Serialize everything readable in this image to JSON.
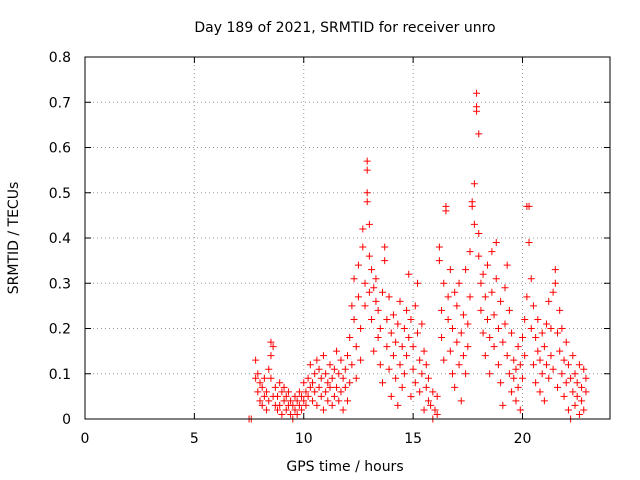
{
  "chart_data": {
    "type": "scatter",
    "title": "Day 189 of 2021, SRMTID for receiver unro",
    "xlabel": "GPS time / hours",
    "ylabel": "SRMTID / TECUs",
    "xlim": [
      0,
      24
    ],
    "ylim": [
      0,
      0.8
    ],
    "xticks": [
      0,
      5,
      10,
      15,
      20
    ],
    "yticks": [
      0,
      0.1,
      0.2,
      0.3,
      0.4,
      0.5,
      0.6,
      0.7,
      0.8
    ],
    "xtick_labels": [
      "0",
      "5",
      "10",
      "15",
      "20"
    ],
    "ytick_labels": [
      "0",
      "0.1",
      "0.2",
      "0.3",
      "0.4",
      "0.5",
      "0.6",
      "0.7",
      "0.8"
    ],
    "grid": true,
    "marker": "plus",
    "color": "#ff0000",
    "series": [
      {
        "name": "SRMTID",
        "points": [
          [
            7.5,
            0
          ],
          [
            7.6,
            0
          ],
          [
            7.8,
            0.13
          ],
          [
            7.8,
            0.09
          ],
          [
            7.9,
            0.06
          ],
          [
            7.9,
            0.1
          ],
          [
            8.0,
            0.04
          ],
          [
            8.0,
            0.08
          ],
          [
            8.1,
            0.07
          ],
          [
            8.1,
            0.03
          ],
          [
            8.2,
            0.05
          ],
          [
            8.2,
            0.09
          ],
          [
            8.3,
            0.02
          ],
          [
            8.3,
            0.06
          ],
          [
            8.4,
            0.11
          ],
          [
            8.4,
            0.04
          ],
          [
            8.5,
            0.17
          ],
          [
            8.5,
            0.14
          ],
          [
            8.5,
            0.09
          ],
          [
            8.6,
            0.16
          ],
          [
            8.6,
            0.05
          ],
          [
            8.7,
            0.03
          ],
          [
            8.7,
            0.07
          ],
          [
            8.8,
            0.02
          ],
          [
            8.8,
            0.05
          ],
          [
            8.9,
            0.08
          ],
          [
            8.9,
            0.03
          ],
          [
            9.0,
            0.06
          ],
          [
            9.0,
            0.01
          ],
          [
            9.1,
            0.04
          ],
          [
            9.1,
            0.07
          ],
          [
            9.2,
            0.02
          ],
          [
            9.2,
            0.05
          ],
          [
            9.3,
            0.03
          ],
          [
            9.3,
            0.06
          ],
          [
            9.4,
            0.01
          ],
          [
            9.4,
            0.04
          ],
          [
            9.5,
            0.03
          ],
          [
            9.5,
            0
          ],
          [
            9.6,
            0.05
          ],
          [
            9.6,
            0.02
          ],
          [
            9.7,
            0.04
          ],
          [
            9.7,
            0.01
          ],
          [
            9.8,
            0.03
          ],
          [
            9.8,
            0.06
          ],
          [
            9.9,
            0.02
          ],
          [
            9.9,
            0.05
          ],
          [
            10.0,
            0.04
          ],
          [
            10.0,
            0.08
          ],
          [
            10.1,
            0.03
          ],
          [
            10.1,
            0.06
          ],
          [
            10.2,
            0.09
          ],
          [
            10.2,
            0.05
          ],
          [
            10.3,
            0.07
          ],
          [
            10.3,
            0.12
          ],
          [
            10.4,
            0.04
          ],
          [
            10.4,
            0.08
          ],
          [
            10.5,
            0.1
          ],
          [
            10.5,
            0.06
          ],
          [
            10.6,
            0.13
          ],
          [
            10.6,
            0.03
          ],
          [
            10.7,
            0.07
          ],
          [
            10.7,
            0.11
          ],
          [
            10.8,
            0.05
          ],
          [
            10.8,
            0.09
          ],
          [
            10.9,
            0.14
          ],
          [
            10.9,
            0.02
          ],
          [
            11.0,
            0.06
          ],
          [
            11.0,
            0.1
          ],
          [
            11.1,
            0.08
          ],
          [
            11.1,
            0.04
          ],
          [
            11.2,
            0.12
          ],
          [
            11.2,
            0.07
          ],
          [
            11.3,
            0.03
          ],
          [
            11.3,
            0.09
          ],
          [
            11.4,
            0.05
          ],
          [
            11.4,
            0.11
          ],
          [
            11.5,
            0.15
          ],
          [
            11.5,
            0.07
          ],
          [
            11.6,
            0.04
          ],
          [
            11.6,
            0.1
          ],
          [
            11.7,
            0.06
          ],
          [
            11.7,
            0.13
          ],
          [
            11.8,
            0.09
          ],
          [
            11.8,
            0.02
          ],
          [
            11.9,
            0.11
          ],
          [
            11.9,
            0.07
          ],
          [
            12.0,
            0.14
          ],
          [
            12.0,
            0.04
          ],
          [
            12.1,
            0.08
          ],
          [
            12.1,
            0.18
          ],
          [
            12.2,
            0.12
          ],
          [
            12.2,
            0.25
          ],
          [
            12.3,
            0.22
          ],
          [
            12.3,
            0.31
          ],
          [
            12.4,
            0.16
          ],
          [
            12.4,
            0.09
          ],
          [
            12.5,
            0.27
          ],
          [
            12.5,
            0.34
          ],
          [
            12.6,
            0.2
          ],
          [
            12.6,
            0.13
          ],
          [
            12.7,
            0.38
          ],
          [
            12.7,
            0.42
          ],
          [
            12.8,
            0.25
          ],
          [
            12.8,
            0.3
          ],
          [
            12.9,
            0.57
          ],
          [
            12.9,
            0.55
          ],
          [
            12.9,
            0.5
          ],
          [
            12.9,
            0.48
          ],
          [
            13.0,
            0.43
          ],
          [
            13.0,
            0.36
          ],
          [
            13.0,
            0.28
          ],
          [
            13.1,
            0.33
          ],
          [
            13.1,
            0.22
          ],
          [
            13.2,
            0.29
          ],
          [
            13.2,
            0.15
          ],
          [
            13.3,
            0.26
          ],
          [
            13.3,
            0.31
          ],
          [
            13.4,
            0.18
          ],
          [
            13.4,
            0.24
          ],
          [
            13.5,
            0.12
          ],
          [
            13.5,
            0.2
          ],
          [
            13.6,
            0.28
          ],
          [
            13.6,
            0.08
          ],
          [
            13.7,
            0.38
          ],
          [
            13.7,
            0.35
          ],
          [
            13.8,
            0.16
          ],
          [
            13.8,
            0.22
          ],
          [
            13.9,
            0.11
          ],
          [
            13.9,
            0.27
          ],
          [
            14.0,
            0.19
          ],
          [
            14.0,
            0.05
          ],
          [
            14.1,
            0.14
          ],
          [
            14.1,
            0.23
          ],
          [
            14.2,
            0.09
          ],
          [
            14.2,
            0.17
          ],
          [
            14.3,
            0.21
          ],
          [
            14.3,
            0.03
          ],
          [
            14.4,
            0.12
          ],
          [
            14.4,
            0.26
          ],
          [
            14.5,
            0.16
          ],
          [
            14.5,
            0.07
          ],
          [
            14.6,
            0.2
          ],
          [
            14.6,
            0.1
          ],
          [
            14.7,
            0.24
          ],
          [
            14.7,
            0.14
          ],
          [
            14.8,
            0.32
          ],
          [
            14.8,
            0.18
          ],
          [
            14.9,
            0.05
          ],
          [
            14.9,
            0.22
          ],
          [
            15.0,
            0.11
          ],
          [
            15.0,
            0.16
          ],
          [
            15.1,
            0.25
          ],
          [
            15.1,
            0.08
          ],
          [
            15.2,
            0.3
          ],
          [
            15.2,
            0.19
          ],
          [
            15.3,
            0.13
          ],
          [
            15.3,
            0.06
          ],
          [
            15.4,
            0.21
          ],
          [
            15.4,
            0.1
          ],
          [
            15.5,
            0.15
          ],
          [
            15.5,
            0.02
          ],
          [
            15.6,
            0.07
          ],
          [
            15.6,
            0.12
          ],
          [
            15.7,
            0.04
          ],
          [
            15.7,
            0.09
          ],
          [
            15.8,
            0.03
          ],
          [
            15.9,
            0.06
          ],
          [
            15.9,
            0
          ],
          [
            16.0,
            0.02
          ],
          [
            16.1,
            0.05
          ],
          [
            16.1,
            0.01
          ],
          [
            16.2,
            0.35
          ],
          [
            16.2,
            0.38
          ],
          [
            16.3,
            0.24
          ],
          [
            16.3,
            0.18
          ],
          [
            16.4,
            0.13
          ],
          [
            16.4,
            0.3
          ],
          [
            16.5,
            0.47
          ],
          [
            16.5,
            0.46
          ],
          [
            16.6,
            0.22
          ],
          [
            16.6,
            0.27
          ],
          [
            16.7,
            0.15
          ],
          [
            16.7,
            0.33
          ],
          [
            16.8,
            0.1
          ],
          [
            16.8,
            0.2
          ],
          [
            16.9,
            0.28
          ],
          [
            16.9,
            0.07
          ],
          [
            17.0,
            0.25
          ],
          [
            17.0,
            0.17
          ],
          [
            17.1,
            0.12
          ],
          [
            17.1,
            0.3
          ],
          [
            17.2,
            0.19
          ],
          [
            17.2,
            0.04
          ],
          [
            17.3,
            0.14
          ],
          [
            17.3,
            0.23
          ],
          [
            17.4,
            0.1
          ],
          [
            17.4,
            0.33
          ],
          [
            17.5,
            0.21
          ],
          [
            17.5,
            0.16
          ],
          [
            17.6,
            0.37
          ],
          [
            17.6,
            0.27
          ],
          [
            17.7,
            0.48
          ],
          [
            17.7,
            0.47
          ],
          [
            17.8,
            0.52
          ],
          [
            17.8,
            0.43
          ],
          [
            17.9,
            0.72
          ],
          [
            17.9,
            0.69
          ],
          [
            17.9,
            0.68
          ],
          [
            18.0,
            0.63
          ],
          [
            18.0,
            0.41
          ],
          [
            18.0,
            0.36
          ],
          [
            18.1,
            0.3
          ],
          [
            18.1,
            0.24
          ],
          [
            18.2,
            0.19
          ],
          [
            18.2,
            0.32
          ],
          [
            18.3,
            0.27
          ],
          [
            18.3,
            0.14
          ],
          [
            18.4,
            0.22
          ],
          [
            18.4,
            0.34
          ],
          [
            18.5,
            0.18
          ],
          [
            18.5,
            0.1
          ],
          [
            18.6,
            0.28
          ],
          [
            18.6,
            0.37
          ],
          [
            18.7,
            0.16
          ],
          [
            18.7,
            0.23
          ],
          [
            18.8,
            0.39
          ],
          [
            18.8,
            0.31
          ],
          [
            18.9,
            0.2
          ],
          [
            18.9,
            0.12
          ],
          [
            19.0,
            0.26
          ],
          [
            19.0,
            0.08
          ],
          [
            19.1,
            0.17
          ],
          [
            19.1,
            0.03
          ],
          [
            19.2,
            0.21
          ],
          [
            19.2,
            0.29
          ],
          [
            19.3,
            0.14
          ],
          [
            19.3,
            0.34
          ],
          [
            19.4,
            0.1
          ],
          [
            19.4,
            0.24
          ],
          [
            19.5,
            0.19
          ],
          [
            19.5,
            0.06
          ],
          [
            19.6,
            0.13
          ],
          [
            19.6,
            0.09
          ],
          [
            19.7,
            0.04
          ],
          [
            19.7,
            0.11
          ],
          [
            19.8,
            0.16
          ],
          [
            19.8,
            0.07
          ],
          [
            19.9,
            0.12
          ],
          [
            19.9,
            0.02
          ],
          [
            20.0,
            0.09
          ],
          [
            20.0,
            0.18
          ],
          [
            20.1,
            0.22
          ],
          [
            20.1,
            0.14
          ],
          [
            20.2,
            0.27
          ],
          [
            20.2,
            0.47
          ],
          [
            20.3,
            0.47
          ],
          [
            20.3,
            0.39
          ],
          [
            20.4,
            0.31
          ],
          [
            20.4,
            0.2
          ],
          [
            20.5,
            0.25
          ],
          [
            20.5,
            0.12
          ],
          [
            20.6,
            0.18
          ],
          [
            20.6,
            0.08
          ],
          [
            20.7,
            0.15
          ],
          [
            20.7,
            0.22
          ],
          [
            20.8,
            0.06
          ],
          [
            20.8,
            0.13
          ],
          [
            20.9,
            0.19
          ],
          [
            20.9,
            0.1
          ],
          [
            21.0,
            0.16
          ],
          [
            21.0,
            0.04
          ],
          [
            21.1,
            0.12
          ],
          [
            21.1,
            0.21
          ],
          [
            21.2,
            0.26
          ],
          [
            21.2,
            0.09
          ],
          [
            21.3,
            0.2
          ],
          [
            21.3,
            0.14
          ],
          [
            21.4,
            0.28
          ],
          [
            21.4,
            0.11
          ],
          [
            21.5,
            0.33
          ],
          [
            21.5,
            0.3
          ],
          [
            21.6,
            0.19
          ],
          [
            21.6,
            0.07
          ],
          [
            21.7,
            0.24
          ],
          [
            21.7,
            0.15
          ],
          [
            21.8,
            0.1
          ],
          [
            21.8,
            0.2
          ],
          [
            21.9,
            0.13
          ],
          [
            21.9,
            0.05
          ],
          [
            22.0,
            0.17
          ],
          [
            22.0,
            0.08
          ],
          [
            22.1,
            0.12
          ],
          [
            22.1,
            0.02
          ],
          [
            22.2,
            0.09
          ],
          [
            22.2,
            0
          ],
          [
            22.3,
            0.14
          ],
          [
            22.3,
            0.06
          ],
          [
            22.4,
            0.1
          ],
          [
            22.4,
            0.03
          ],
          [
            22.5,
            0.08
          ],
          [
            22.5,
            0.05
          ],
          [
            22.6,
            0.12
          ],
          [
            22.6,
            0.01
          ],
          [
            22.7,
            0.07
          ],
          [
            22.7,
            0.04
          ],
          [
            22.8,
            0.11
          ],
          [
            22.8,
            0.02
          ],
          [
            22.9,
            0.06
          ],
          [
            22.9,
            0.09
          ]
        ]
      }
    ]
  }
}
